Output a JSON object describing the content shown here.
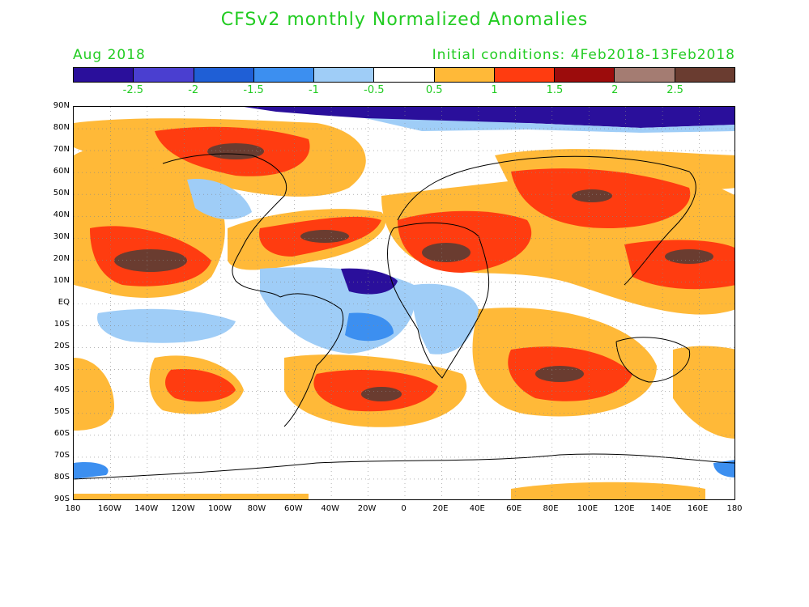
{
  "title": "CFSv2 monthly Normalized Anomalies",
  "month": "Aug 2018",
  "initial_conditions": "Initial conditions: 4Feb2018-13Feb2018",
  "title_color": "#22cc22",
  "colorbar": {
    "colors": [
      "#2a0f9b",
      "#4a3fd0",
      "#1f5fd6",
      "#3c8ff0",
      "#9fcdf7",
      "#ffffff",
      "#ffb938",
      "#ff3c10",
      "#9c0c0c",
      "#a47c72",
      "#6a3c30"
    ],
    "labels": [
      "-2.5",
      "-2",
      "-1.5",
      "-1",
      "-0.5",
      "0.5",
      "1",
      "1.5",
      "2",
      "2.5"
    ]
  },
  "lat_labels": [
    "90N",
    "80N",
    "70N",
    "60N",
    "50N",
    "40N",
    "30N",
    "20N",
    "10N",
    "EQ",
    "10S",
    "20S",
    "30S",
    "40S",
    "50S",
    "60S",
    "70S",
    "80S",
    "90S"
  ],
  "lon_labels": [
    "180",
    "160W",
    "140W",
    "120W",
    "100W",
    "80W",
    "60W",
    "40W",
    "20W",
    "0",
    "20E",
    "40E",
    "60E",
    "80E",
    "100E",
    "120E",
    "140E",
    "160E",
    "180"
  ]
}
